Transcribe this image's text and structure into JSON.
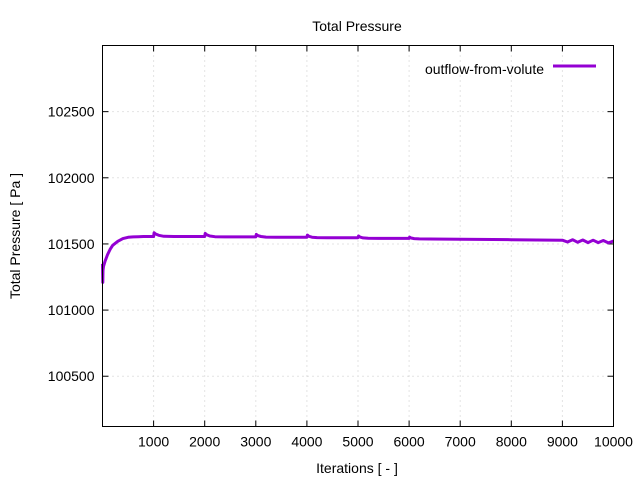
{
  "chart_data": {
    "type": "line",
    "title": "Total Pressure",
    "xlabel": "Iterations [ - ]",
    "ylabel": "Total Pressure [ Pa ]",
    "xlim": [
      0,
      10000
    ],
    "ylim": [
      100120,
      103000
    ],
    "xticks": [
      1000,
      2000,
      3000,
      4000,
      5000,
      6000,
      7000,
      8000,
      9000,
      10000
    ],
    "yticks": [
      100500,
      101000,
      101500,
      102000,
      102500
    ],
    "grid": true,
    "legend_position": "top-right",
    "series": [
      {
        "name": "outflow-from-volute",
        "color": "#9400d3",
        "x": [
          0,
          5,
          10,
          20,
          50,
          100,
          150,
          200,
          300,
          400,
          500,
          600,
          700,
          800,
          1000,
          1010,
          1040,
          1100,
          1200,
          1400,
          2000,
          2010,
          2040,
          2100,
          2200,
          2400,
          3000,
          3010,
          3040,
          3100,
          3200,
          3400,
          4000,
          4010,
          4040,
          4100,
          4200,
          4400,
          5000,
          5010,
          5040,
          5100,
          5200,
          5400,
          6000,
          6010,
          6040,
          6100,
          6200,
          6400,
          7000,
          8000,
          9000,
          9100,
          9200,
          9300,
          9400,
          9500,
          9600,
          9700,
          9800,
          9900,
          10000
        ],
        "y": [
          101350,
          101210,
          101300,
          101330,
          101370,
          101420,
          101460,
          101490,
          101520,
          101540,
          101550,
          101553,
          101555,
          101556,
          101556,
          101585,
          101575,
          101565,
          101558,
          101556,
          101556,
          101580,
          101570,
          101560,
          101555,
          101553,
          101553,
          101572,
          101563,
          101556,
          101552,
          101550,
          101550,
          101567,
          101558,
          101551,
          101548,
          101547,
          101547,
          101560,
          101552,
          101546,
          101543,
          101542,
          101542,
          101552,
          101545,
          101540,
          101538,
          101537,
          101535,
          101532,
          101528,
          101515,
          101532,
          101512,
          101530,
          101510,
          101528,
          101510,
          101526,
          101508,
          101522
        ]
      }
    ]
  }
}
